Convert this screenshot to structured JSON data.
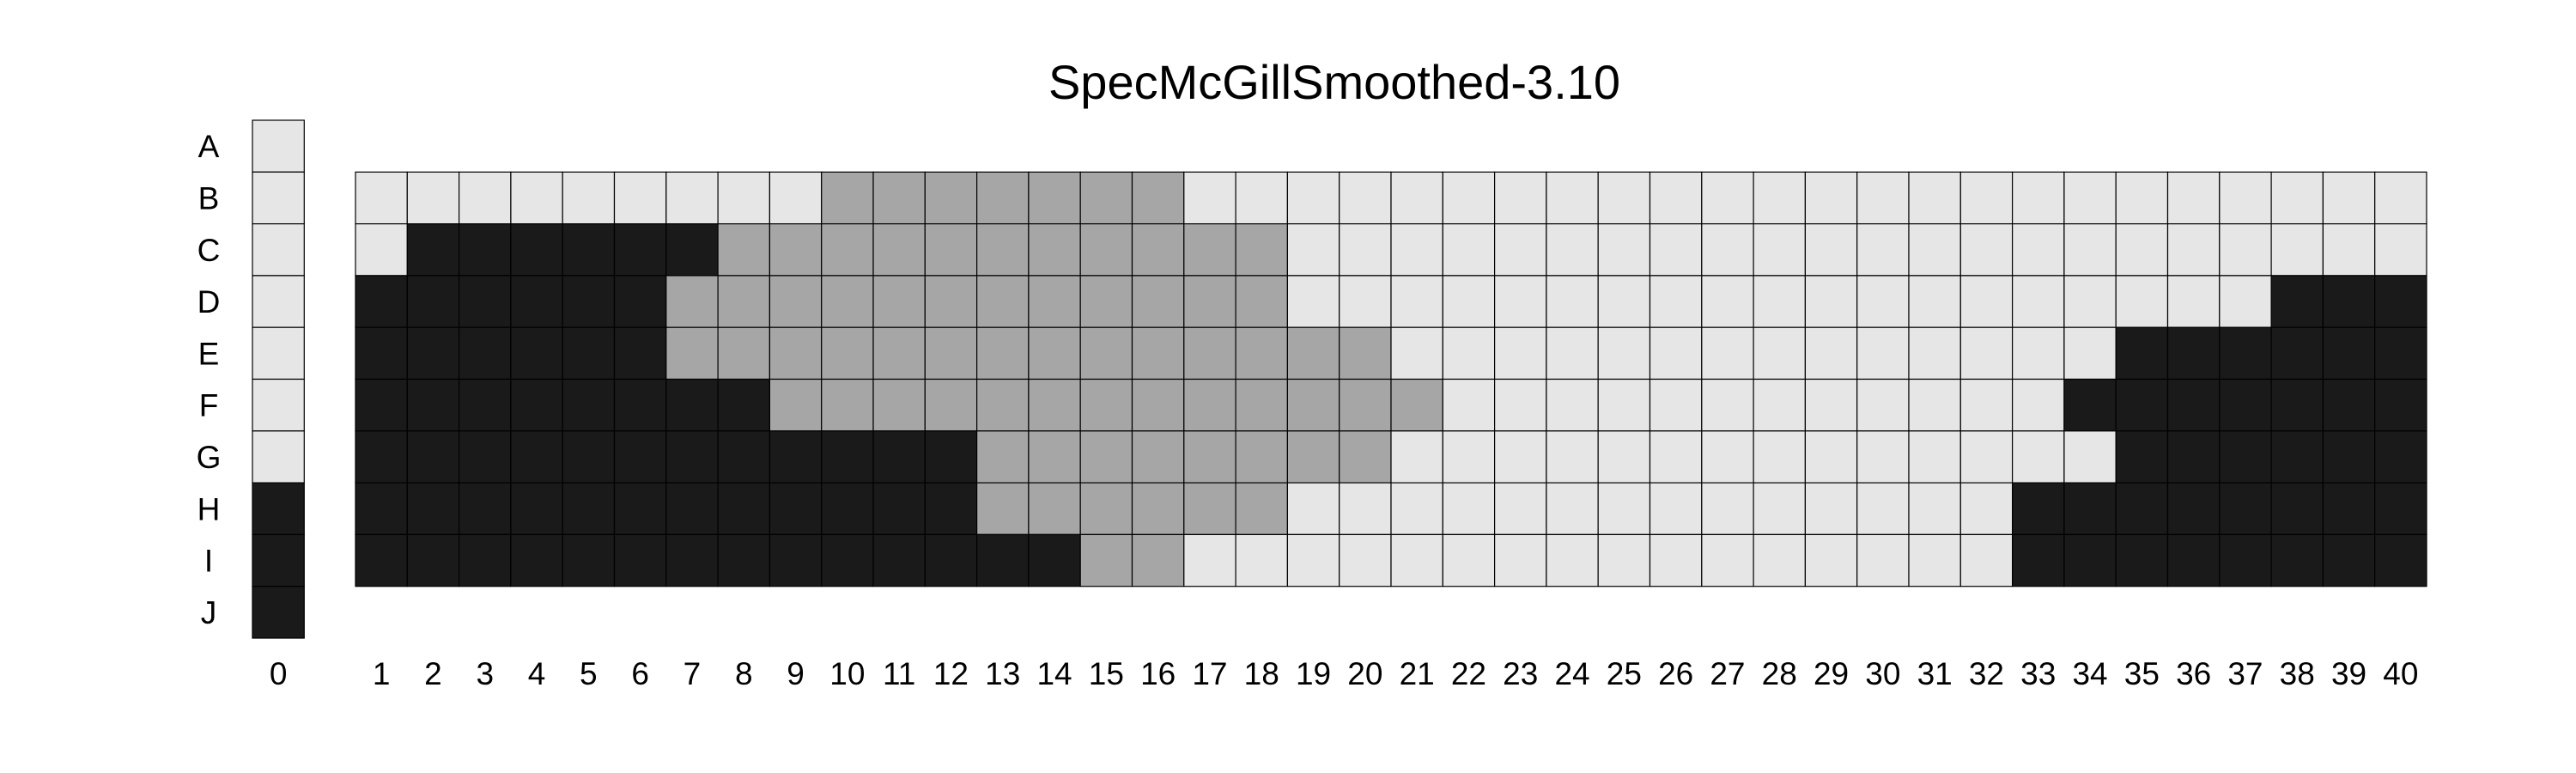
{
  "chart_data": {
    "type": "heatmap",
    "title": "SpecMcGillSmoothed-3.10",
    "row_labels": [
      "A",
      "B",
      "C",
      "D",
      "E",
      "F",
      "G",
      "H",
      "I",
      "J"
    ],
    "column_labels": [
      "0",
      "1",
      "2",
      "3",
      "4",
      "5",
      "6",
      "7",
      "8",
      "9",
      "10",
      "11",
      "12",
      "13",
      "14",
      "15",
      "16",
      "17",
      "18",
      "19",
      "20",
      "21",
      "22",
      "23",
      "24",
      "25",
      "26",
      "27",
      "28",
      "29",
      "30",
      "31",
      "32",
      "33",
      "34",
      "35",
      "36",
      "37",
      "38",
      "39",
      "40"
    ],
    "levels": [
      {
        "value": 0,
        "color": "#e6e6e6"
      },
      {
        "value": 1,
        "color": "#a6a6a6"
      },
      {
        "value": 2,
        "color": "#1a1a1a"
      }
    ],
    "column_0": {
      "rows": [
        "A",
        "B",
        "C",
        "D",
        "E",
        "F",
        "G",
        "H",
        "I",
        "J"
      ],
      "values": [
        0,
        0,
        0,
        0,
        0,
        0,
        0,
        2,
        2,
        2
      ]
    },
    "grid": {
      "rows": [
        "B",
        "C",
        "D",
        "E",
        "F",
        "G",
        "H",
        "I"
      ],
      "columns": [
        "1",
        "2",
        "3",
        "4",
        "5",
        "6",
        "7",
        "8",
        "9",
        "10",
        "11",
        "12",
        "13",
        "14",
        "15",
        "16",
        "17",
        "18",
        "19",
        "20",
        "21",
        "22",
        "23",
        "24",
        "25",
        "26",
        "27",
        "28",
        "29",
        "30",
        "31",
        "32",
        "33",
        "34",
        "35",
        "36",
        "37",
        "38",
        "39",
        "40"
      ],
      "values": [
        [
          0,
          0,
          0,
          0,
          0,
          0,
          0,
          0,
          0,
          1,
          1,
          1,
          1,
          1,
          1,
          1,
          0,
          0,
          0,
          0,
          0,
          0,
          0,
          0,
          0,
          0,
          0,
          0,
          0,
          0,
          0,
          0,
          0,
          0,
          0,
          0,
          0,
          0,
          0,
          0
        ],
        [
          0,
          2,
          2,
          2,
          2,
          2,
          2,
          1,
          1,
          1,
          1,
          1,
          1,
          1,
          1,
          1,
          1,
          1,
          0,
          0,
          0,
          0,
          0,
          0,
          0,
          0,
          0,
          0,
          0,
          0,
          0,
          0,
          0,
          0,
          0,
          0,
          0,
          0,
          0,
          0
        ],
        [
          2,
          2,
          2,
          2,
          2,
          2,
          1,
          1,
          1,
          1,
          1,
          1,
          1,
          1,
          1,
          1,
          1,
          1,
          0,
          0,
          0,
          0,
          0,
          0,
          0,
          0,
          0,
          0,
          0,
          0,
          0,
          0,
          0,
          0,
          0,
          0,
          0,
          2,
          2,
          2
        ],
        [
          2,
          2,
          2,
          2,
          2,
          2,
          1,
          1,
          1,
          1,
          1,
          1,
          1,
          1,
          1,
          1,
          1,
          1,
          1,
          1,
          0,
          0,
          0,
          0,
          0,
          0,
          0,
          0,
          0,
          0,
          0,
          0,
          0,
          0,
          2,
          2,
          2,
          2,
          2,
          2
        ],
        [
          2,
          2,
          2,
          2,
          2,
          2,
          2,
          2,
          1,
          1,
          1,
          1,
          1,
          1,
          1,
          1,
          1,
          1,
          1,
          1,
          1,
          0,
          0,
          0,
          0,
          0,
          0,
          0,
          0,
          0,
          0,
          0,
          0,
          2,
          2,
          2,
          2,
          2,
          2,
          2
        ],
        [
          2,
          2,
          2,
          2,
          2,
          2,
          2,
          2,
          2,
          2,
          2,
          2,
          1,
          1,
          1,
          1,
          1,
          1,
          1,
          1,
          0,
          0,
          0,
          0,
          0,
          0,
          0,
          0,
          0,
          0,
          0,
          0,
          0,
          0,
          2,
          2,
          2,
          2,
          2,
          2
        ],
        [
          2,
          2,
          2,
          2,
          2,
          2,
          2,
          2,
          2,
          2,
          2,
          2,
          1,
          1,
          1,
          1,
          1,
          1,
          0,
          0,
          0,
          0,
          0,
          0,
          0,
          0,
          0,
          0,
          0,
          0,
          0,
          0,
          2,
          2,
          2,
          2,
          2,
          2,
          2,
          2
        ],
        [
          2,
          2,
          2,
          2,
          2,
          2,
          2,
          2,
          2,
          2,
          2,
          2,
          2,
          2,
          1,
          1,
          0,
          0,
          0,
          0,
          0,
          0,
          0,
          0,
          0,
          0,
          0,
          0,
          0,
          0,
          0,
          0,
          2,
          2,
          2,
          2,
          2,
          2,
          2,
          2
        ]
      ]
    },
    "legend": "none"
  }
}
